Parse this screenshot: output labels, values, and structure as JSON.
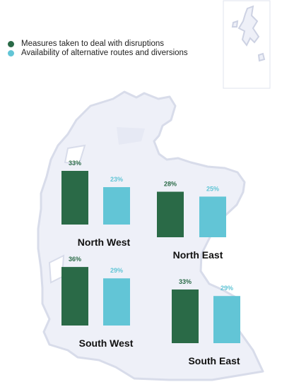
{
  "legend": [
    {
      "label": "Measures taken to deal with disruptions",
      "color": "#2a6a47"
    },
    {
      "label": "Availability of alternative routes and diversions",
      "color": "#62c5d6"
    }
  ],
  "chart_data": {
    "type": "bar",
    "series": [
      {
        "name": "Measures taken to deal with disruptions",
        "color": "#2a6a47"
      },
      {
        "name": "Availability of alternative routes and diversions",
        "color": "#62c5d6"
      }
    ],
    "regions": [
      {
        "name": "North West",
        "values": [
          33,
          23
        ],
        "labels": [
          "33%",
          "23%"
        ]
      },
      {
        "name": "North East",
        "values": [
          28,
          25
        ],
        "labels": [
          "28%",
          "25%"
        ]
      },
      {
        "name": "South West",
        "values": [
          36,
          29
        ],
        "labels": [
          "36%",
          "29%"
        ]
      },
      {
        "name": "South East",
        "values": [
          33,
          29
        ],
        "labels": [
          "33%",
          "29%"
        ]
      }
    ],
    "ylim": [
      0,
      36
    ],
    "map": "Scotland",
    "map_fill": "#eef0f8",
    "map_outline": "#cdd2e3",
    "grid": false,
    "legend_position": "top-left"
  }
}
